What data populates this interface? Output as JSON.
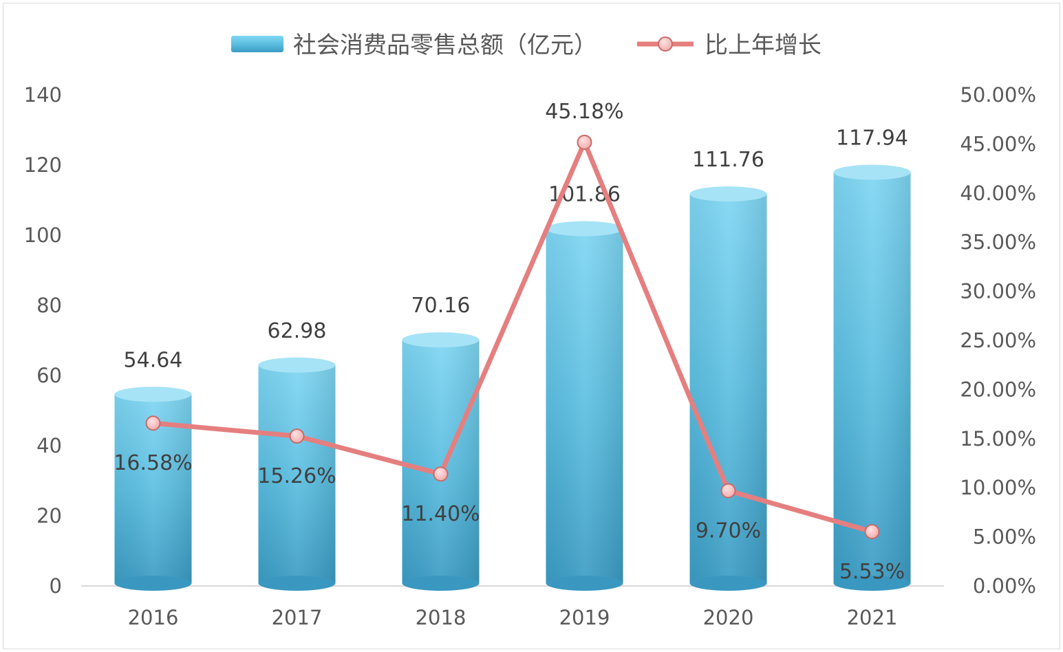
{
  "chart_data": {
    "type": "bar",
    "categories": [
      "2016",
      "2017",
      "2018",
      "2019",
      "2020",
      "2021"
    ],
    "series": [
      {
        "name": "社会消费品零售总额（亿元）",
        "type": "bar",
        "axis": "left",
        "values": [
          54.64,
          62.98,
          70.16,
          101.86,
          111.76,
          117.94
        ],
        "labels": [
          "54.64",
          "62.98",
          "70.16",
          "101.86",
          "111.76",
          "117.94"
        ],
        "color": "#5bbfe0"
      },
      {
        "name": "比上年增长",
        "type": "line",
        "axis": "right",
        "values": [
          16.58,
          15.26,
          11.4,
          45.18,
          9.7,
          5.53
        ],
        "labels": [
          "16.58%",
          "15.26%",
          "11.40%",
          "45.18%",
          "9.70%",
          "5.53%"
        ],
        "color": "#e57f7f"
      }
    ],
    "y_left": {
      "ylim": [
        0,
        140
      ],
      "ticks": [
        "0",
        "20",
        "40",
        "60",
        "80",
        "100",
        "120",
        "140"
      ]
    },
    "y_right": {
      "ylim": [
        0,
        50
      ],
      "ticks": [
        "0.00%",
        "5.00%",
        "10.00%",
        "15.00%",
        "20.00%",
        "25.00%",
        "30.00%",
        "35.00%",
        "40.00%",
        "45.00%",
        "50.00%"
      ]
    },
    "grid": false,
    "legend_position": "top-center"
  }
}
